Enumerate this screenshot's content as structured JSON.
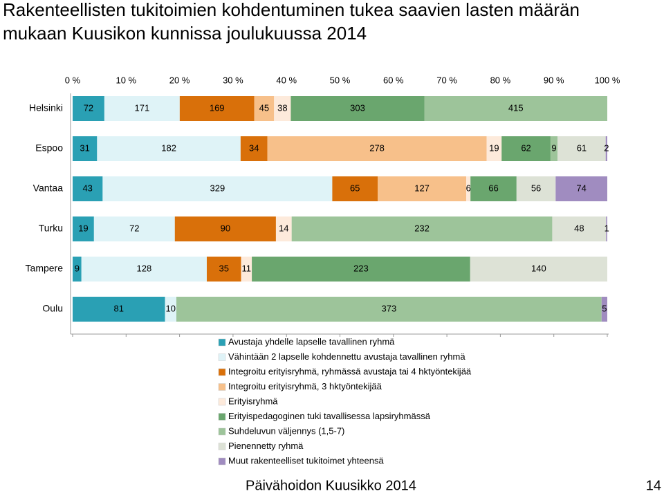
{
  "chart_data": {
    "type": "stacked-percent-bar",
    "title": "Rakenteellisten tukitoimien kohdentuminen tukea saavien lasten määrän mukaan Kuusikon kunnissa joulukuussa 2014",
    "categories": [
      "Helsinki",
      "Espoo",
      "Vantaa",
      "Turku",
      "Tampere",
      "Oulu"
    ],
    "xlim": [
      0,
      100
    ],
    "xticks": [
      {
        "value": 0,
        "label": "0 %"
      },
      {
        "value": 10,
        "label": "10 %"
      },
      {
        "value": 20,
        "label": "20 %"
      },
      {
        "value": 30,
        "label": "30 %"
      },
      {
        "value": 40,
        "label": "40 %"
      },
      {
        "value": 50,
        "label": "50 %"
      },
      {
        "value": 60,
        "label": "60 %"
      },
      {
        "value": 70,
        "label": "70 %"
      },
      {
        "value": 80,
        "label": "80 %"
      },
      {
        "value": 90,
        "label": "90 %"
      },
      {
        "value": 100,
        "label": "100 %"
      }
    ],
    "series": [
      {
        "name": "Avustaja yhdelle lapselle tavallinen ryhmä",
        "color": "#2aa0b4",
        "values": [
          72,
          31,
          43,
          19,
          9,
          81
        ]
      },
      {
        "name": "Vähintään 2 lapselle kohdennettu avustaja tavallinen ryhmä",
        "color": "#dff3f7",
        "values": [
          171,
          182,
          329,
          72,
          128,
          10
        ]
      },
      {
        "name": "Integroitu erityisryhmä, ryhmässä avustaja tai 4 hktyöntekijää",
        "color": "#d9700a",
        "values": [
          169,
          34,
          65,
          90,
          35,
          null
        ]
      },
      {
        "name": "Integroitu erityisryhmä, 3 hktyöntekijää",
        "color": "#f7c08a",
        "values": [
          45,
          278,
          127,
          null,
          null,
          null
        ]
      },
      {
        "name": "Erityisryhmä",
        "color": "#fdeadb",
        "values": [
          38,
          19,
          6,
          14,
          11,
          null
        ]
      },
      {
        "name": "Erityispedagoginen tuki tavallisessa lapsiryhmässä",
        "color": "#6aa66e",
        "values": [
          303,
          62,
          66,
          null,
          223,
          null
        ]
      },
      {
        "name": "Suhdeluvun väljennys (1,5-7)",
        "color": "#9dc49a",
        "values": [
          415,
          9,
          null,
          232,
          null,
          373
        ]
      },
      {
        "name": "Pienennetty ryhmä",
        "color": "#dde2d6",
        "values": [
          null,
          61,
          56,
          48,
          140,
          null
        ]
      },
      {
        "name": "Muut rakenteelliset tukitoimet yhteensä",
        "color": "#a08cc0",
        "values": [
          null,
          2,
          74,
          1,
          null,
          5
        ]
      }
    ]
  },
  "footer": {
    "text": "Päivähoidon Kuusikko 2014",
    "page": "14"
  }
}
